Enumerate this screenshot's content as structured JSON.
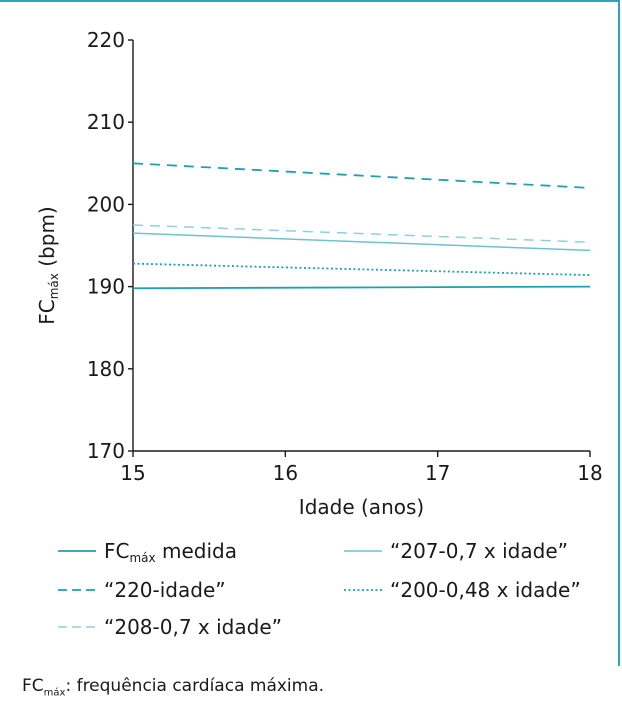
{
  "chart_data": {
    "type": "line",
    "xlabel": "Idade (anos)",
    "ylabel_main": "FC",
    "ylabel_sub": "máx",
    "ylabel_unit": " (bpm)",
    "xlim": [
      15,
      18
    ],
    "ylim": [
      170,
      220
    ],
    "xticks": [
      15,
      16,
      17,
      18
    ],
    "yticks": [
      170,
      180,
      190,
      200,
      210,
      220
    ],
    "x": [
      15,
      18
    ],
    "series": [
      {
        "name_main": "FC",
        "name_sub": "máx",
        "name_rest": " medida",
        "values": [
          189.8,
          190.0
        ],
        "color": "#1ba1b3",
        "dash": "solid",
        "width": 1.8
      },
      {
        "name_main": "“220-idade”",
        "name_sub": "",
        "name_rest": "",
        "values": [
          205.0,
          202.0
        ],
        "color": "#1ba1b3",
        "dash": "dashed",
        "width": 1.8
      },
      {
        "name_main": "“208-0,7 x idade”",
        "name_sub": "",
        "name_rest": "",
        "values": [
          197.5,
          195.4
        ],
        "color": "#8ed1db",
        "dash": "dashed",
        "width": 1.5
      },
      {
        "name_main": "“207-0,7 x idade”",
        "name_sub": "",
        "name_rest": "",
        "values": [
          196.5,
          194.4
        ],
        "color": "#6cc3d0",
        "dash": "solid",
        "width": 1.5
      },
      {
        "name_main": "“200-0,48 x idade”",
        "name_sub": "",
        "name_rest": "",
        "values": [
          192.8,
          191.4
        ],
        "color": "#1ba1b3",
        "dash": "dotted",
        "width": 1.8
      }
    ]
  },
  "caption": {
    "main": "FC",
    "sub": "máx",
    "rest": ": frequência cardíaca máxima."
  }
}
